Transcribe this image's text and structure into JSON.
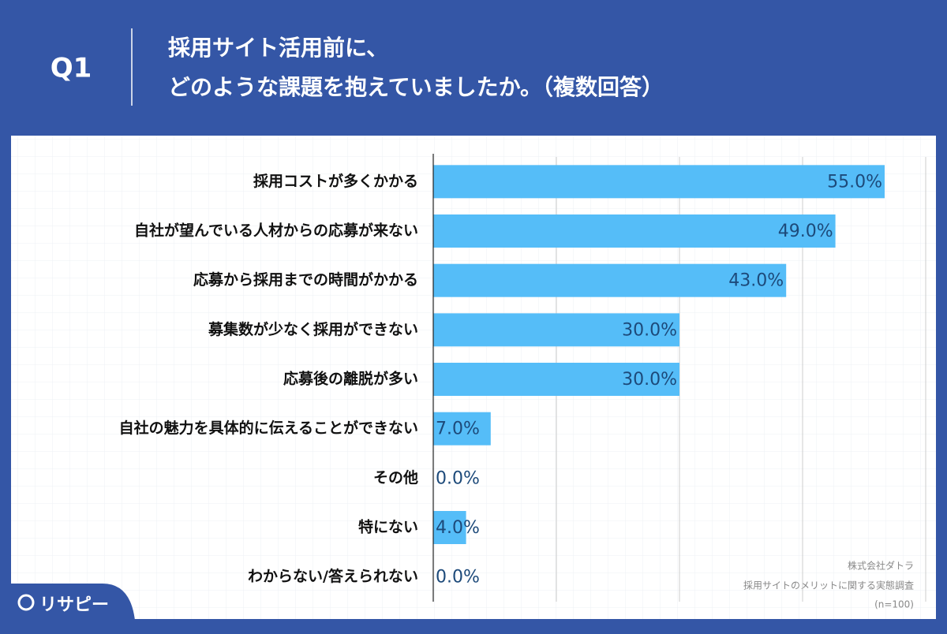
{
  "header": {
    "label": "Q1",
    "title": [
      "採用サイト活用前に、",
      "どのような課題を抱えていましたか。（複数回答）"
    ]
  },
  "chart_data": {
    "type": "bar",
    "orientation": "horizontal",
    "categories": [
      "採用コストが多くかかる",
      "自社が望んでいる人材からの応募が来ない",
      "応募から採用までの時間がかかる",
      "募集数が少なく採用ができない",
      "応募後の離脱が多い",
      "自社の魅力を具体的に伝えることができない",
      "その他",
      "特にない",
      "わからない/答えられない"
    ],
    "values": [
      55,
      49,
      43,
      30,
      30,
      7,
      0,
      4,
      0
    ],
    "value_labels": [
      "55.0%",
      "49.0%",
      "43.0%",
      "30.0%",
      "30.0%",
      "7.0%",
      "0.0%",
      "4.0%",
      "0.0%"
    ],
    "color": "#55bdf8",
    "xlim": [
      0,
      60
    ],
    "xticks": [
      15,
      30,
      45,
      60
    ],
    "grid": true
  },
  "source": [
    "株式会社ダトラ",
    "採用サイトのメリットに関する実態調査",
    "(n=100)"
  ],
  "logo": "リサピー"
}
